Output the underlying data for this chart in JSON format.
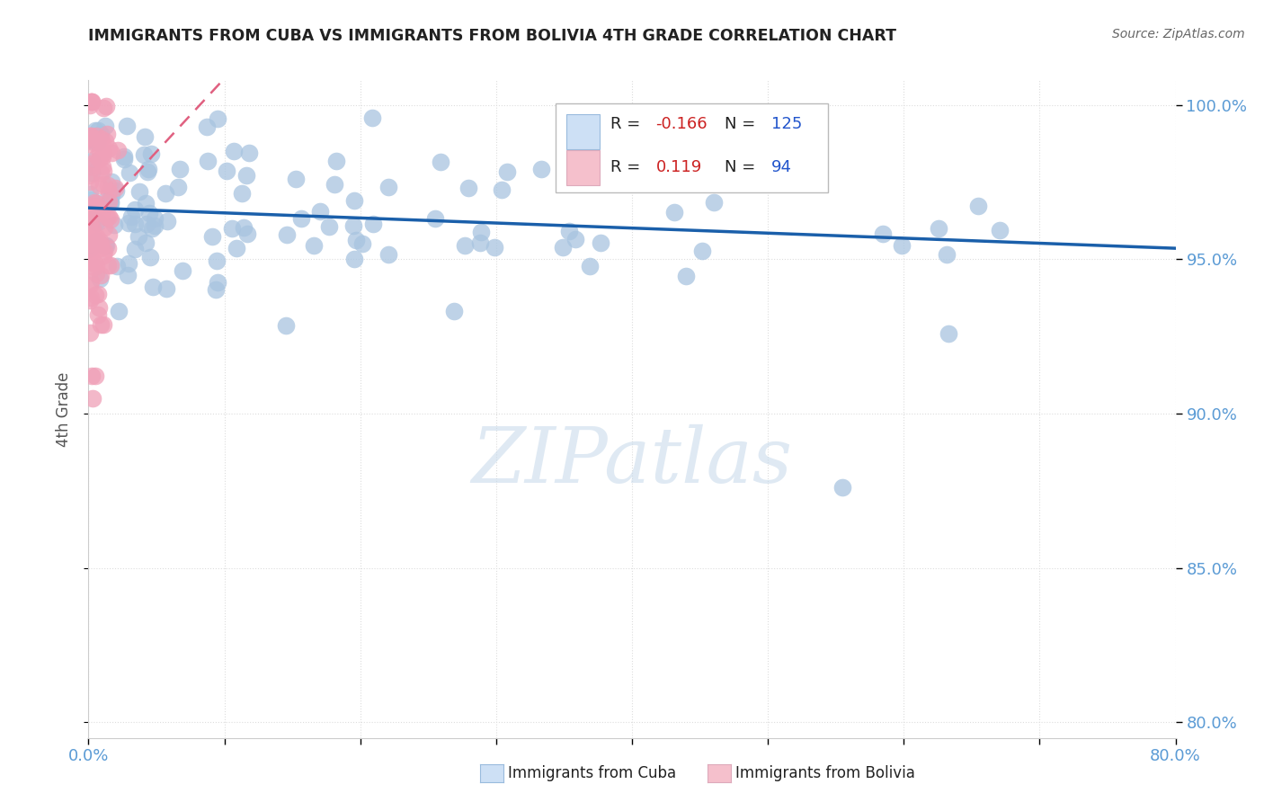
{
  "title": "IMMIGRANTS FROM CUBA VS IMMIGRANTS FROM BOLIVIA 4TH GRADE CORRELATION CHART",
  "source": "Source: ZipAtlas.com",
  "ylabel": "4th Grade",
  "ymin": 0.795,
  "ymax": 1.008,
  "xmin": 0.0,
  "xmax": 0.8,
  "r_cuba": -0.166,
  "n_cuba": 125,
  "r_bolivia": 0.119,
  "n_bolivia": 94,
  "color_cuba": "#a8c4e0",
  "color_bolivia": "#f0a0b8",
  "trendline_cuba": "#1a5faa",
  "trendline_bolivia": "#e06080",
  "watermark": "ZIPatlas",
  "watermark_color_zip": "#b8cce0",
  "watermark_color_atlas": "#b8cce0",
  "background": "#ffffff",
  "grid_color": "#dddddd",
  "ytick_color": "#5b9bd5",
  "xtick_color": "#5b9bd5"
}
